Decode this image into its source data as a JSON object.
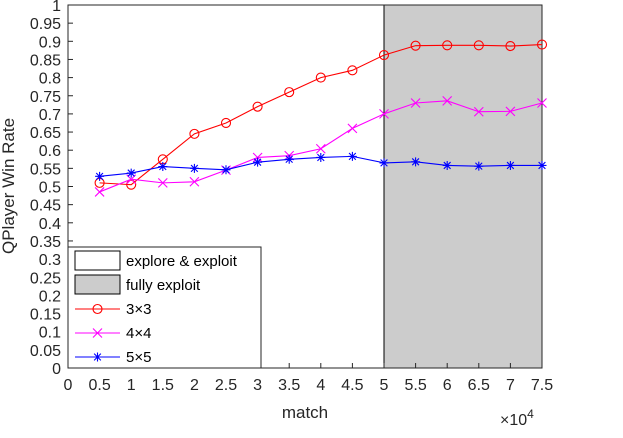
{
  "chart_data": {
    "type": "line",
    "xlabel": "match",
    "ylabel": "QPlayer Win Rate",
    "x_exponent_base": "×10",
    "x_exponent_power": "4",
    "xlim": [
      0,
      7.5
    ],
    "ylim": [
      0,
      1
    ],
    "x_ticks": [
      "0",
      "0.5",
      "1",
      "1.5",
      "2",
      "2.5",
      "3",
      "3.5",
      "4",
      "4.5",
      "5",
      "5.5",
      "6",
      "6.5",
      "7",
      "7.5"
    ],
    "y_ticks": [
      "0",
      "0.05",
      "0.1",
      "0.15",
      "0.2",
      "0.25",
      "0.3",
      "0.35",
      "0.4",
      "0.45",
      "0.5",
      "0.55",
      "0.6",
      "0.65",
      "0.7",
      "0.75",
      "0.8",
      "0.85",
      "0.9",
      "0.95",
      "1"
    ],
    "grid": false,
    "legend_position": "bottom-left",
    "x": [
      0.5,
      1,
      1.5,
      2,
      2.5,
      3,
      3.5,
      4,
      4.5,
      5,
      5.5,
      6,
      6.5,
      7,
      7.5
    ],
    "regions": [
      {
        "name": "explore & exploit",
        "x_range": [
          0,
          5
        ],
        "color": "#ffffff"
      },
      {
        "name": "fully exploit",
        "x_range": [
          5,
          7.5
        ],
        "color": "#cccccc"
      }
    ],
    "series": [
      {
        "name": "3×3",
        "color": "#ff0000",
        "marker": "circle",
        "values": [
          0.51,
          0.505,
          0.575,
          0.645,
          0.675,
          0.72,
          0.76,
          0.8,
          0.82,
          0.862,
          0.888,
          0.889,
          0.889,
          0.887,
          0.891
        ]
      },
      {
        "name": "4×4",
        "color": "#ff00ff",
        "marker": "x",
        "values": [
          0.485,
          0.52,
          0.51,
          0.513,
          0.545,
          0.58,
          0.585,
          0.604,
          0.66,
          0.7,
          0.73,
          0.736,
          0.706,
          0.707,
          0.73
        ]
      },
      {
        "name": "5×5",
        "color": "#0000ff",
        "marker": "star",
        "values": [
          0.528,
          0.537,
          0.555,
          0.55,
          0.546,
          0.567,
          0.575,
          0.58,
          0.583,
          0.565,
          0.568,
          0.558,
          0.556,
          0.558,
          0.558
        ]
      }
    ]
  }
}
